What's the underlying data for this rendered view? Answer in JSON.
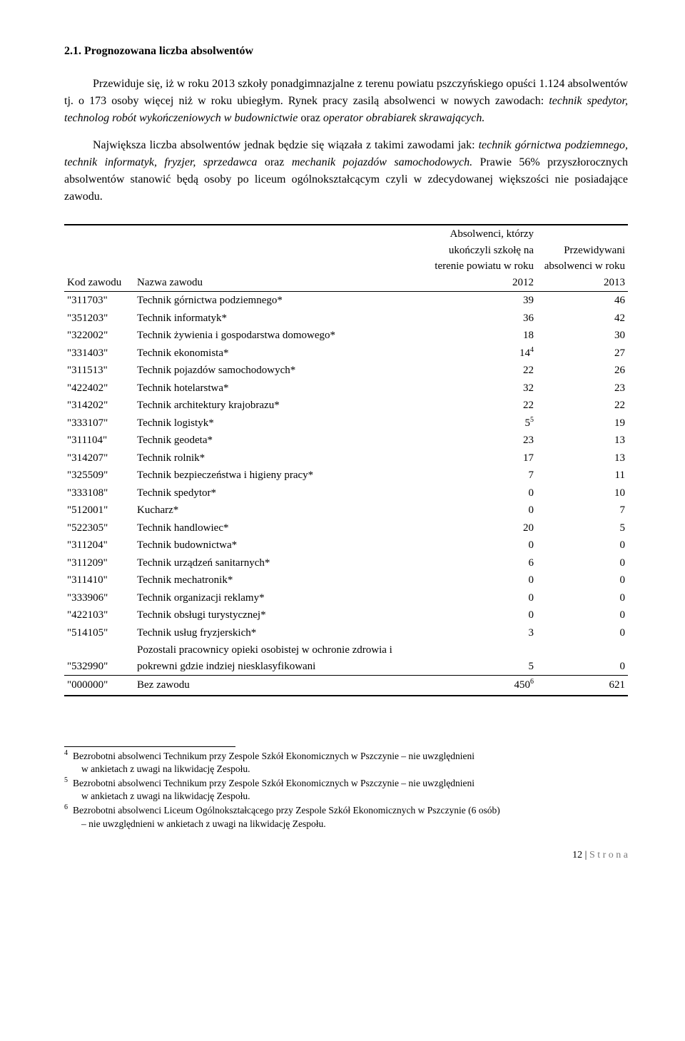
{
  "heading": "2.1. Prognozowana liczba absolwentów",
  "para1_a": "Przewiduje się, iż w roku 2013 szkoły ponadgimnazjalne z terenu powiatu pszczyńskiego opuści 1.124 absolwentów tj. o 173 osoby więcej niż w roku ubiegłym. Rynek pracy zasilą absolwenci w nowych zawodach: ",
  "para1_i": "technik spedytor, technolog robót wykończeniowych w budownictwie ",
  "para1_b": "oraz ",
  "para1_i2": "operator obrabiarek skrawających.",
  "para2_a": "Największa liczba absolwentów jednak będzie się wiązała z takimi zawodami jak: ",
  "para2_i": "technik górnictwa podziemnego, technik informatyk, fryzjer, sprzedawca ",
  "para2_b": "oraz ",
  "para2_i2": "mechanik pojazdów samochodowych. ",
  "para2_c": "Prawie 56% przyszłorocznych absolwentów stanowić będą osoby po liceum ogólnokształcącym czyli w zdecydowanej większości nie posiadające zawodu.",
  "headers": {
    "code": "Kod zawodu",
    "name": "Nazwa zawodu",
    "col1": "Absolwenci, którzy ukończyli szkołę na terenie powiatu w roku 2012",
    "col2": "Przewidywani absolwenci w roku 2013"
  },
  "rows": [
    {
      "code": "\"311703\"",
      "name": "Technik górnictwa podziemnego*",
      "v1": "39",
      "v2": "46"
    },
    {
      "code": "\"351203\"",
      "name": "Technik informatyk*",
      "v1": "36",
      "v2": "42"
    },
    {
      "code": "\"322002\"",
      "name": "Technik żywienia i gospodarstwa domowego*",
      "v1": "18",
      "v2": "30"
    },
    {
      "code": "\"331403\"",
      "name": "Technik ekonomista*",
      "v1": "14",
      "v1sup": "4",
      "v2": "27"
    },
    {
      "code": "\"311513\"",
      "name": "Technik pojazdów samochodowych*",
      "v1": "22",
      "v2": "26"
    },
    {
      "code": "\"422402\"",
      "name": "Technik hotelarstwa*",
      "v1": "32",
      "v2": "23"
    },
    {
      "code": "\"314202\"",
      "name": "Technik architektury krajobrazu*",
      "v1": "22",
      "v2": "22"
    },
    {
      "code": "\"333107\"",
      "name": "Technik logistyk*",
      "v1": "5",
      "v1sup": "5",
      "v2": "19"
    },
    {
      "code": "\"311104\"",
      "name": "Technik geodeta*",
      "v1": "23",
      "v2": "13"
    },
    {
      "code": "\"314207\"",
      "name": "Technik rolnik*",
      "v1": "17",
      "v2": "13"
    },
    {
      "code": "\"325509\"",
      "name": "Technik bezpieczeństwa i higieny pracy*",
      "v1": "7",
      "v2": "11"
    },
    {
      "code": "\"333108\"",
      "name": "Technik spedytor*",
      "v1": "0",
      "v2": "10"
    },
    {
      "code": "\"512001\"",
      "name": "Kucharz*",
      "v1": "0",
      "v2": "7"
    },
    {
      "code": "\"522305\"",
      "name": "Technik handlowiec*",
      "v1": "20",
      "v2": "5"
    },
    {
      "code": "\"311204\"",
      "name": "Technik budownictwa*",
      "v1": "0",
      "v2": "0"
    },
    {
      "code": "\"311209\"",
      "name": "Technik urządzeń sanitarnych*",
      "v1": "6",
      "v2": "0"
    },
    {
      "code": "\"311410\"",
      "name": "Technik mechatronik*",
      "v1": "0",
      "v2": "0"
    },
    {
      "code": "\"333906\"",
      "name": "Technik organizacji reklamy*",
      "v1": "0",
      "v2": "0"
    },
    {
      "code": "\"422103\"",
      "name": "Technik obsługi turystycznej*",
      "v1": "0",
      "v2": "0"
    },
    {
      "code": "\"514105\"",
      "name": "Technik usług fryzjerskich*",
      "v1": "3",
      "v2": "0"
    },
    {
      "code": "\"532990\"",
      "name": "Pozostali pracownicy opieki osobistej w ochronie zdrowia i pokrewni gdzie indziej niesklasyfikowani",
      "v1": "5",
      "v2": "0"
    }
  ],
  "sumrow": {
    "code": "\"000000\"",
    "name": "Bez zawodu",
    "v1": "450",
    "v1sup": "6",
    "v2": "621"
  },
  "footnotes": [
    {
      "n": "4",
      "t1": "Bezrobotni absolwenci Technikum przy Zespole Szkół Ekonomicznych w Pszczynie – nie uwzględnieni",
      "t2": "w ankietach z uwagi na likwidację Zespołu."
    },
    {
      "n": "5",
      "t1": "Bezrobotni absolwenci Technikum przy Zespole Szkół Ekonomicznych w Pszczynie – nie uwzględnieni",
      "t2": "w ankietach z uwagi na likwidację Zespołu."
    },
    {
      "n": "6",
      "t1": "Bezrobotni absolwenci Liceum Ogólnokształcącego przy Zespole Szkół Ekonomicznych w Pszczynie  (6 osób)",
      "t2": "– nie uwzględnieni w ankietach z uwagi na likwidację Zespołu."
    }
  ],
  "pagefoot_a": "12 | ",
  "pagefoot_b": "S t r o n a"
}
